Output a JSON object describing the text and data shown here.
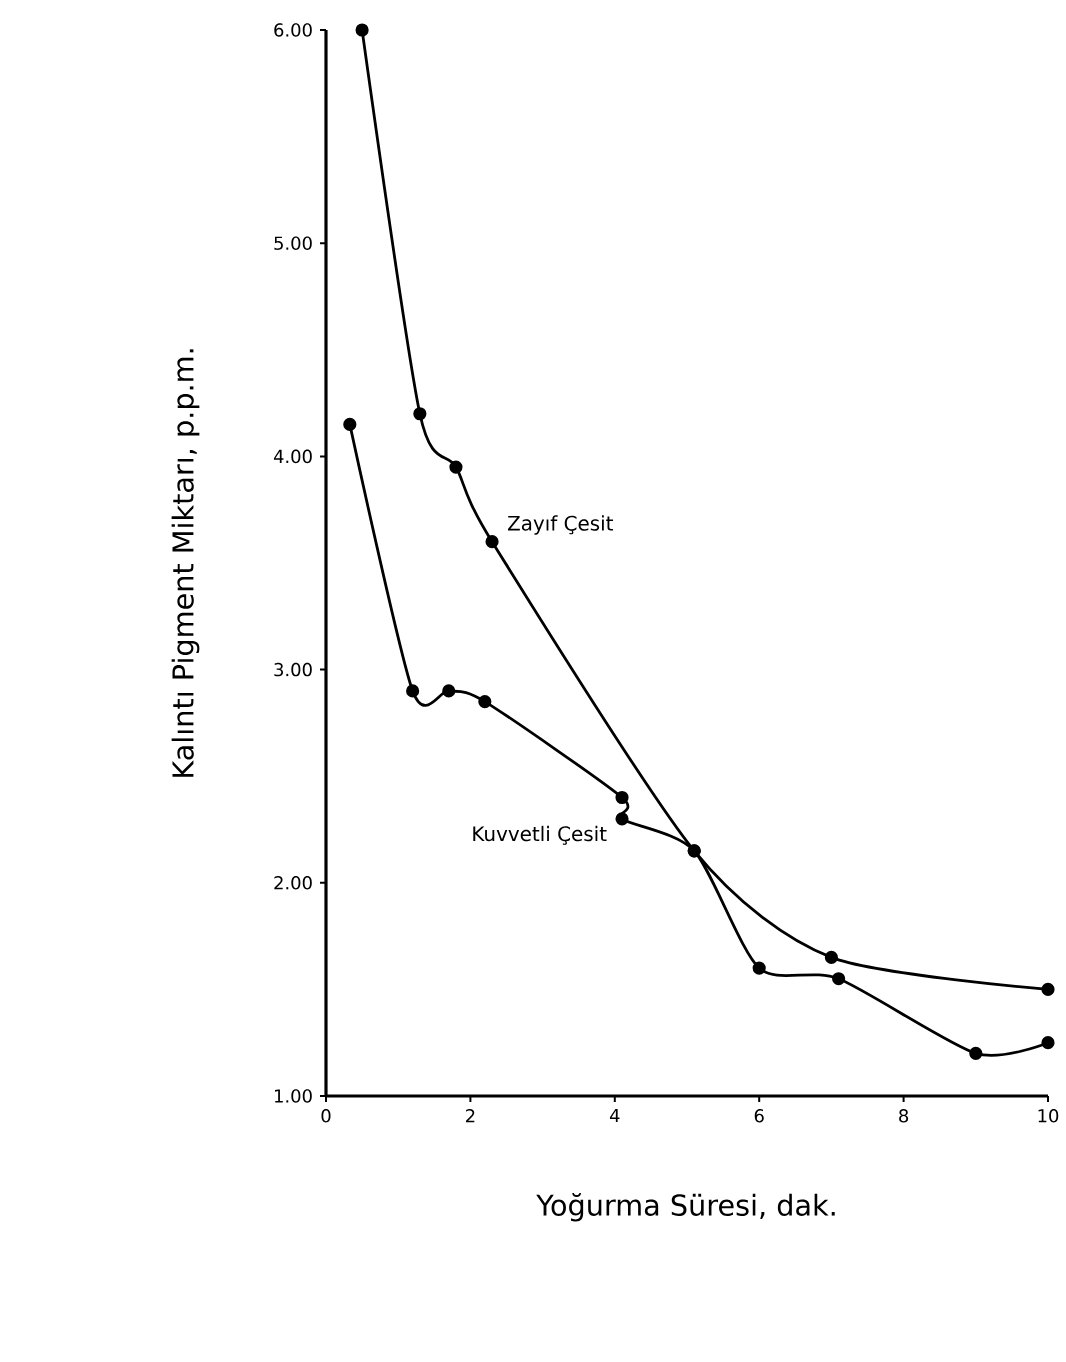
{
  "chart_data": {
    "type": "line",
    "xlabel": "Yoğurma Süresi, dak.",
    "ylabel": "Kalıntı Pigment Miktarı, p.p.m.",
    "xlim": [
      0,
      10
    ],
    "ylim": [
      1,
      6
    ],
    "xticks": [
      0,
      2,
      4,
      6,
      8,
      10
    ],
    "yticks": [
      {
        "value": 1,
        "label": "1.00"
      },
      {
        "value": 2,
        "label": "2.00"
      },
      {
        "value": 3,
        "label": "3.00"
      },
      {
        "value": 4,
        "label": "4.00"
      },
      {
        "value": 5,
        "label": "5.00"
      },
      {
        "value": 6,
        "label": "6.00"
      }
    ],
    "grid": false,
    "legend": false,
    "marker": "circle",
    "line_style": "solid",
    "series": [
      {
        "name": "Zayıf Çesit",
        "color": "#000000",
        "x": [
          0.5,
          1.3,
          1.8,
          2.3,
          5.1,
          7.0,
          10
        ],
        "values": [
          6.0,
          4.2,
          3.95,
          3.6,
          2.15,
          1.65,
          1.5
        ]
      },
      {
        "name": "Kuvvetli Çesit",
        "color": "#000000",
        "x": [
          0.33,
          1.2,
          1.7,
          2.2,
          4.1,
          4.1,
          5.1,
          6.0,
          7.1,
          9.0,
          10
        ],
        "values": [
          4.15,
          2.9,
          2.9,
          2.85,
          2.4,
          2.3,
          2.15,
          1.6,
          1.55,
          1.2,
          1.25
        ]
      }
    ]
  }
}
